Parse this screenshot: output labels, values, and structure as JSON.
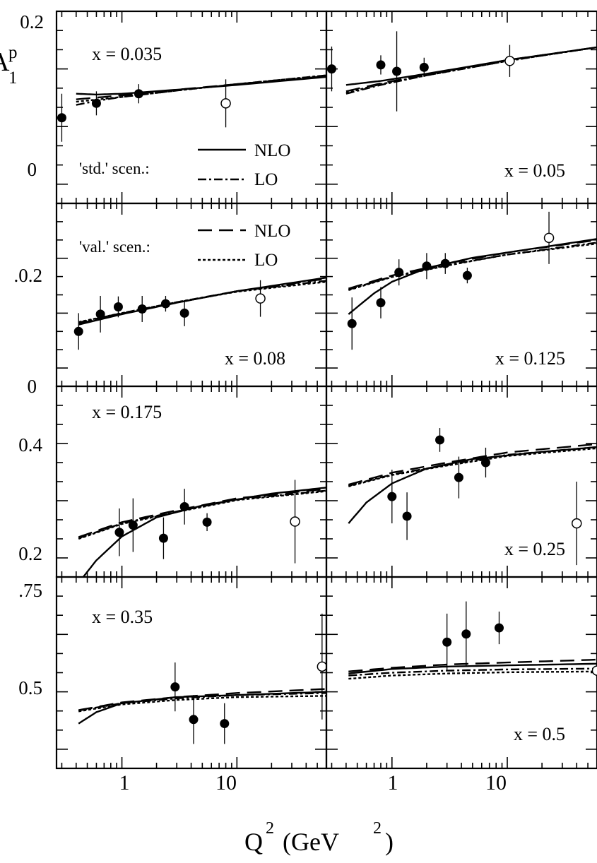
{
  "figure": {
    "ylabel_main": "A",
    "ylabel_sup": "p",
    "ylabel_sub": "1",
    "xlabel_main": "Q",
    "xlabel_sup": "2",
    "xlabel_unit_open": "(GeV",
    "xlabel_unit_sup": "2",
    "xlabel_unit_close": ")",
    "xticks": [
      "1",
      "10"
    ],
    "row_ticks": [
      [
        "0.2",
        "0"
      ],
      [
        ".0.2",
        "0"
      ],
      [
        "0.4",
        "0.2"
      ],
      [
        ".75",
        "0.5"
      ]
    ]
  },
  "legend": {
    "std_label": "'std.' scen.:",
    "val_label": "'val.' scen.:",
    "nlo": "NLO",
    "lo": "LO"
  },
  "chart_data": {
    "type": "scatter",
    "title": "",
    "xlabel": "Q^2 (GeV^2)",
    "ylabel": "A_1^p",
    "xscale": "log",
    "xlim": [
      0.27,
      60
    ],
    "grid": false,
    "series_styles": {
      "std_NLO": "solid",
      "std_LO": "dash-dot",
      "val_NLO": "long-dash",
      "val_LO": "dotted",
      "filled_markers": "filled circles",
      "open_markers": "open circles"
    },
    "panels": [
      {
        "label": "x = 0.035",
        "ylim": [
          -0.04,
          0.2
        ],
        "points": [
          [
            0.3,
            0.067,
            0.03
          ],
          [
            0.6,
            0.085,
            0.015
          ],
          [
            1.4,
            0.097,
            0.012
          ]
        ],
        "open_points": [
          [
            8,
            0.085,
            0.03
          ]
        ],
        "curves": {
          "std_NLO": [
            [
              0.4,
              0.097
            ],
            [
              0.6,
              0.096
            ],
            [
              1,
              0.097
            ],
            [
              3,
              0.102
            ],
            [
              10,
              0.108
            ],
            [
              60,
              0.118
            ]
          ],
          "std_LO": [
            [
              0.4,
              0.083
            ],
            [
              0.6,
              0.088
            ],
            [
              1,
              0.093
            ],
            [
              3,
              0.101
            ],
            [
              10,
              0.109
            ],
            [
              60,
              0.12
            ]
          ],
          "val_NLO": [
            [
              0.4,
              0.09
            ],
            [
              1,
              0.095
            ],
            [
              3,
              0.102
            ],
            [
              10,
              0.109
            ],
            [
              60,
              0.119
            ]
          ],
          "val_LO": [
            [
              0.4,
              0.087
            ],
            [
              1,
              0.093
            ],
            [
              3,
              0.101
            ],
            [
              10,
              0.109
            ],
            [
              60,
              0.12
            ]
          ]
        }
      },
      {
        "label": "x = 0.05",
        "ylim": [
          -0.04,
          0.2
        ],
        "points": [
          [
            0.3,
            0.128,
            0.028
          ],
          [
            0.8,
            0.133,
            0.012
          ],
          [
            1.1,
            0.125,
            0.05
          ],
          [
            1.9,
            0.13,
            0.012
          ]
        ],
        "open_points": [
          [
            10.5,
            0.138,
            0.02
          ]
        ],
        "curves": {
          "std_NLO": [
            [
              0.4,
              0.108
            ],
            [
              0.8,
              0.113
            ],
            [
              2,
              0.122
            ],
            [
              10,
              0.139
            ],
            [
              60,
              0.155
            ]
          ],
          "std_LO": [
            [
              0.4,
              0.097
            ],
            [
              0.8,
              0.108
            ],
            [
              2,
              0.12
            ],
            [
              10,
              0.138
            ],
            [
              60,
              0.155
            ]
          ],
          "val_NLO": [
            [
              0.4,
              0.1
            ],
            [
              0.8,
              0.11
            ],
            [
              2,
              0.121
            ],
            [
              10,
              0.139
            ],
            [
              60,
              0.155
            ]
          ],
          "val_LO": [
            [
              0.4,
              0.098
            ],
            [
              0.8,
              0.109
            ],
            [
              2,
              0.12
            ],
            [
              10,
              0.138
            ],
            [
              60,
              0.155
            ]
          ]
        }
      },
      {
        "label": "x = 0.08",
        "ylim": [
          -0.01,
          0.34
        ],
        "points": [
          [
            0.42,
            0.095,
            0.035
          ],
          [
            0.65,
            0.128,
            0.035
          ],
          [
            0.93,
            0.142,
            0.02
          ],
          [
            1.5,
            0.138,
            0.025
          ],
          [
            2.4,
            0.148,
            0.015
          ],
          [
            3.5,
            0.13,
            0.025
          ]
        ],
        "open_points": [
          [
            16,
            0.158,
            0.035
          ]
        ],
        "curves": {
          "std_NLO": [
            [
              0.42,
              0.108
            ],
            [
              1,
              0.128
            ],
            [
              3,
              0.15
            ],
            [
              10,
              0.172
            ],
            [
              60,
              0.198
            ]
          ],
          "std_LO": [
            [
              0.42,
              0.112
            ],
            [
              1,
              0.13
            ],
            [
              3,
              0.151
            ],
            [
              10,
              0.172
            ],
            [
              60,
              0.192
            ]
          ],
          "val_NLO": [
            [
              0.42,
              0.11
            ],
            [
              1,
              0.129
            ],
            [
              3,
              0.15
            ],
            [
              10,
              0.172
            ],
            [
              60,
              0.196
            ]
          ],
          "val_LO": [
            [
              0.42,
              0.113
            ],
            [
              1,
              0.13
            ],
            [
              3,
              0.151
            ],
            [
              10,
              0.171
            ],
            [
              60,
              0.19
            ]
          ]
        }
      },
      {
        "label": "x = 0.125",
        "ylim": [
          -0.01,
          0.34
        ],
        "points": [
          [
            0.45,
            0.11,
            0.05
          ],
          [
            0.8,
            0.15,
            0.03
          ],
          [
            1.15,
            0.208,
            0.025
          ],
          [
            2,
            0.22,
            0.025
          ],
          [
            2.9,
            0.225,
            0.02
          ],
          [
            4.5,
            0.202,
            0.015
          ]
        ],
        "open_points": [
          [
            23,
            0.274,
            0.05
          ]
        ],
        "curves": {
          "std_NLO": [
            [
              0.42,
              0.128
            ],
            [
              0.7,
              0.168
            ],
            [
              1,
              0.19
            ],
            [
              2,
              0.216
            ],
            [
              5,
              0.236
            ],
            [
              20,
              0.256
            ],
            [
              60,
              0.272
            ]
          ],
          "std_LO": [
            [
              0.42,
              0.175
            ],
            [
              1,
              0.2
            ],
            [
              3,
              0.222
            ],
            [
              10,
              0.242
            ],
            [
              60,
              0.265
            ]
          ],
          "val_NLO": [
            [
              0.42,
              0.177
            ],
            [
              1,
              0.202
            ],
            [
              3,
              0.225
            ],
            [
              10,
              0.246
            ],
            [
              60,
              0.27
            ]
          ],
          "val_LO": [
            [
              0.42,
              0.174
            ],
            [
              1,
              0.199
            ],
            [
              3,
              0.221
            ],
            [
              10,
              0.242
            ],
            [
              60,
              0.263
            ]
          ]
        }
      },
      {
        "label": "x = 0.175",
        "ylim": [
          0.18,
          0.5
        ],
        "points": [
          [
            0.95,
            0.255,
            0.04
          ],
          [
            1.25,
            0.267,
            0.045
          ],
          [
            2.3,
            0.245,
            0.035
          ],
          [
            3.5,
            0.298,
            0.03
          ],
          [
            5.5,
            0.272,
            0.015
          ]
        ],
        "open_points": [
          [
            32,
            0.273,
            0.07
          ]
        ],
        "curves": {
          "std_NLO": [
            [
              0.42,
              0.17
            ],
            [
              0.6,
              0.208
            ],
            [
              1,
              0.248
            ],
            [
              2,
              0.28
            ],
            [
              5,
              0.3
            ],
            [
              20,
              0.32
            ],
            [
              60,
              0.33
            ]
          ],
          "std_LO": [
            [
              0.42,
              0.245
            ],
            [
              1,
              0.27
            ],
            [
              3,
              0.29
            ],
            [
              10,
              0.31
            ],
            [
              60,
              0.325
            ]
          ],
          "val_NLO": [
            [
              0.42,
              0.247
            ],
            [
              1,
              0.272
            ],
            [
              3,
              0.292
            ],
            [
              10,
              0.312
            ],
            [
              60,
              0.328
            ]
          ],
          "val_LO": [
            [
              0.42,
              0.244
            ],
            [
              1,
              0.269
            ],
            [
              3,
              0.289
            ],
            [
              10,
              0.309
            ],
            [
              60,
              0.324
            ]
          ]
        }
      },
      {
        "label": "x = 0.25",
        "ylim": [
          0.18,
          0.5
        ],
        "points": [
          [
            1,
            0.315,
            0.045
          ],
          [
            1.35,
            0.282,
            0.04
          ],
          [
            2.6,
            0.41,
            0.02
          ],
          [
            3.8,
            0.347,
            0.035
          ],
          [
            6.5,
            0.372,
            0.025
          ]
        ],
        "open_points": [
          [
            40,
            0.27,
            0.07
          ]
        ],
        "curves": {
          "std_NLO": [
            [
              0.42,
              0.27
            ],
            [
              0.6,
              0.305
            ],
            [
              1,
              0.337
            ],
            [
              2,
              0.362
            ],
            [
              5,
              0.378
            ],
            [
              20,
              0.39
            ],
            [
              60,
              0.398
            ]
          ],
          "std_LO": [
            [
              0.42,
              0.333
            ],
            [
              1,
              0.352
            ],
            [
              3,
              0.368
            ],
            [
              10,
              0.385
            ],
            [
              60,
              0.398
            ]
          ],
          "val_NLO": [
            [
              0.42,
              0.335
            ],
            [
              1,
              0.355
            ],
            [
              3,
              0.372
            ],
            [
              10,
              0.389
            ],
            [
              60,
              0.403
            ]
          ],
          "val_LO": [
            [
              0.42,
              0.332
            ],
            [
              1,
              0.351
            ],
            [
              3,
              0.367
            ],
            [
              10,
              0.383
            ],
            [
              60,
              0.396
            ]
          ]
        }
      },
      {
        "label": "x = 0.35",
        "ylim": [
          0.28,
          0.75
        ],
        "points": [
          [
            2.9,
            0.48,
            0.06
          ],
          [
            4.2,
            0.4,
            0.06
          ],
          [
            7.8,
            0.39,
            0.05
          ]
        ],
        "open_points": [
          [
            55,
            0.53,
            0.13
          ]
        ],
        "curves": {
          "std_NLO": [
            [
              0.42,
              0.39
            ],
            [
              0.6,
              0.418
            ],
            [
              1,
              0.44
            ],
            [
              3,
              0.455
            ],
            [
              10,
              0.46
            ],
            [
              60,
              0.468
            ]
          ],
          "std_LO": [
            [
              0.42,
              0.422
            ],
            [
              1,
              0.44
            ],
            [
              3,
              0.452
            ],
            [
              10,
              0.46
            ],
            [
              60,
              0.465
            ]
          ],
          "val_NLO": [
            [
              0.42,
              0.423
            ],
            [
              1,
              0.442
            ],
            [
              3,
              0.455
            ],
            [
              10,
              0.465
            ],
            [
              60,
              0.475
            ]
          ],
          "val_LO": [
            [
              0.42,
              0.42
            ],
            [
              1,
              0.437
            ],
            [
              3,
              0.448
            ],
            [
              10,
              0.455
            ],
            [
              60,
              0.458
            ]
          ]
        }
      },
      {
        "label": "x = 0.5",
        "ylim": [
          0.28,
          0.75
        ],
        "points": [
          [
            3,
            0.59,
            0.07
          ],
          [
            4.4,
            0.61,
            0.08
          ],
          [
            8.5,
            0.625,
            0.04
          ]
        ],
        "open_points": [
          [
            60,
            0.52,
            0.13
          ]
        ],
        "curves": {
          "std_NLO": [
            [
              0.42,
              0.513
            ],
            [
              1,
              0.524
            ],
            [
              3,
              0.53
            ],
            [
              10,
              0.533
            ],
            [
              60,
              0.537
            ]
          ],
          "std_LO": [
            [
              0.42,
              0.508
            ],
            [
              1,
              0.515
            ],
            [
              3,
              0.52
            ],
            [
              10,
              0.523
            ],
            [
              60,
              0.525
            ]
          ],
          "val_NLO": [
            [
              0.42,
              0.518
            ],
            [
              1,
              0.527
            ],
            [
              3,
              0.535
            ],
            [
              10,
              0.54
            ],
            [
              60,
              0.547
            ]
          ],
          "val_LO": [
            [
              0.42,
              0.5
            ],
            [
              1,
              0.508
            ],
            [
              3,
              0.513
            ],
            [
              10,
              0.516
            ],
            [
              60,
              0.518
            ]
          ]
        }
      }
    ]
  }
}
